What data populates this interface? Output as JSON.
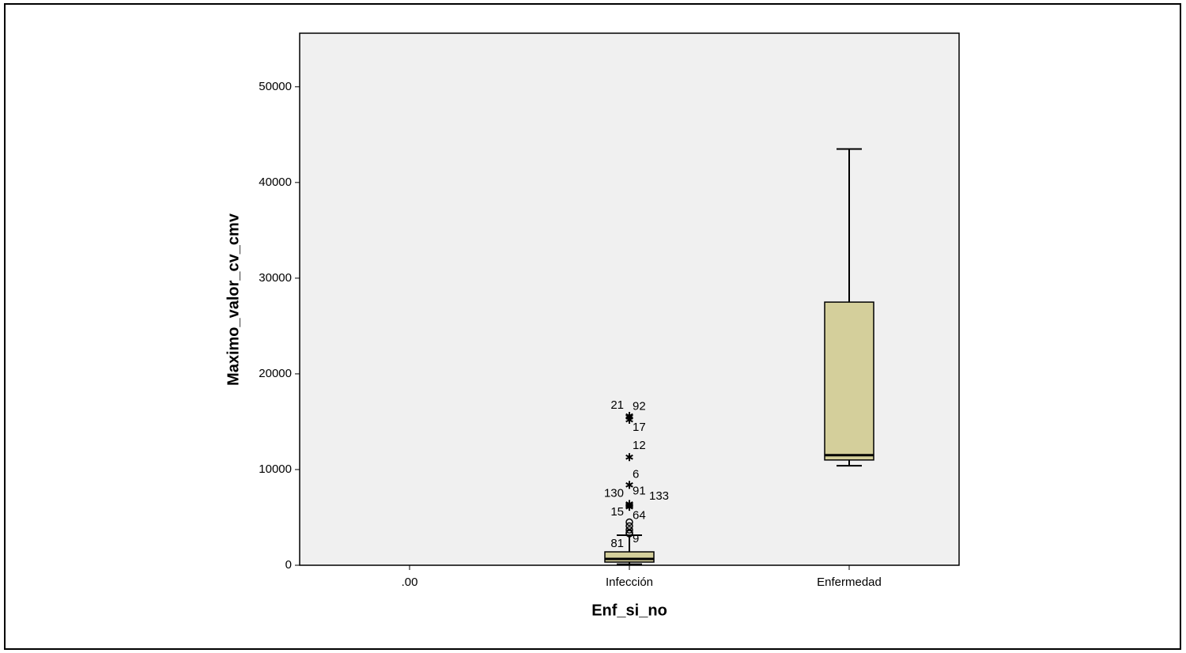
{
  "chart_data": {
    "type": "box",
    "x_label": "Enf_si_no",
    "y_label": "Maximo_valor_cv_cmv",
    "categories": [
      ".00",
      "Infección",
      "Enfermedad"
    ],
    "whisker_low": [
      null,
      100,
      10400
    ],
    "q1": [
      null,
      330,
      11000
    ],
    "median": [
      null,
      660,
      11500
    ],
    "q3": [
      null,
      1400,
      27500
    ],
    "whisker_high": [
      null,
      3140,
      43500
    ],
    "outliers": [
      [],
      [
        {
          "value": 15600,
          "label": "21",
          "marker": "star"
        },
        {
          "value": 15500,
          "label": "92",
          "marker": "star"
        },
        {
          "value": 15200,
          "label": "17",
          "marker": "star"
        },
        {
          "value": 11300,
          "label": "12",
          "marker": "star"
        },
        {
          "value": 8400,
          "label": "6",
          "marker": "star"
        },
        {
          "value": 6400,
          "label": "130",
          "marker": "star"
        },
        {
          "value": 6300,
          "label": "91",
          "marker": "star"
        },
        {
          "value": 6200,
          "label": "133",
          "marker": "star"
        },
        {
          "value": 6100,
          "label": "15",
          "marker": "star"
        },
        {
          "value": 4500,
          "label": "64",
          "marker": "circle"
        },
        {
          "value": 4100,
          "marker": "circle"
        },
        {
          "value": 3700,
          "marker": "circle"
        },
        {
          "value": 3400,
          "label": "81",
          "marker": "circle"
        },
        {
          "value": 3300,
          "label": "9",
          "marker": "circle"
        }
      ],
      []
    ],
    "color": "#d4cf9b",
    "background": "#f0f0f0",
    "ylim": [
      0,
      55600
    ],
    "yticks": [
      0,
      10000,
      20000,
      30000,
      40000,
      50000
    ]
  }
}
